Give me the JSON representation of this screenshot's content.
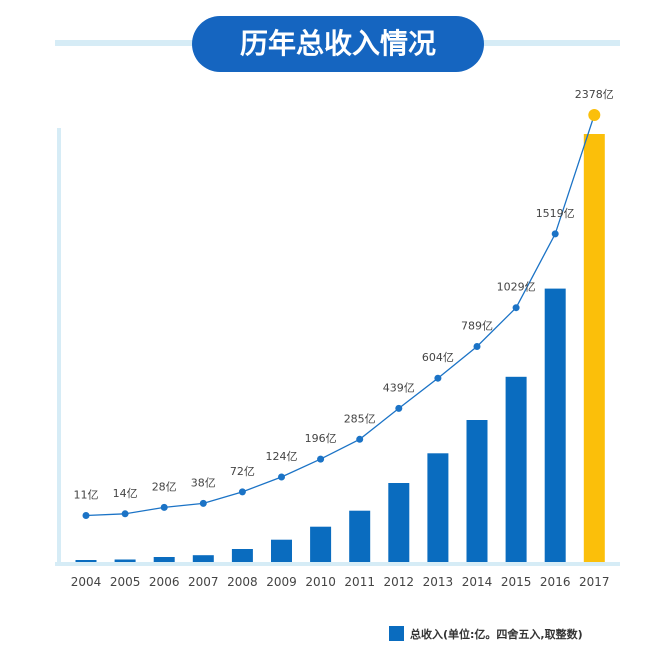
{
  "chart_data": {
    "type": "bar",
    "title": "历年总收入情况",
    "categories": [
      "2004",
      "2005",
      "2006",
      "2007",
      "2008",
      "2009",
      "2010",
      "2011",
      "2012",
      "2013",
      "2014",
      "2015",
      "2016",
      "2017"
    ],
    "values": [
      11,
      14,
      28,
      38,
      72,
      124,
      196,
      285,
      439,
      604,
      789,
      1029,
      1519,
      2378
    ],
    "data_labels": [
      "11亿",
      "14亿",
      "28亿",
      "38亿",
      "72亿",
      "124亿",
      "196亿",
      "285亿",
      "439亿",
      "604亿",
      "789亿",
      "1029亿",
      "1519亿",
      "2378亿"
    ],
    "overlay": "line",
    "highlight_index": 13,
    "legend": {
      "label": "总收入(单位:亿。四舍五入,取整数)",
      "placement": "bottom-right"
    },
    "xlabel": "",
    "ylabel": "",
    "grid": false
  },
  "colors": {
    "bar": "#0a6cbf",
    "highlight": "#fbbf0a",
    "line": "#1b73c6",
    "banner": "#1565c0",
    "axis": "#d6ecf6"
  }
}
